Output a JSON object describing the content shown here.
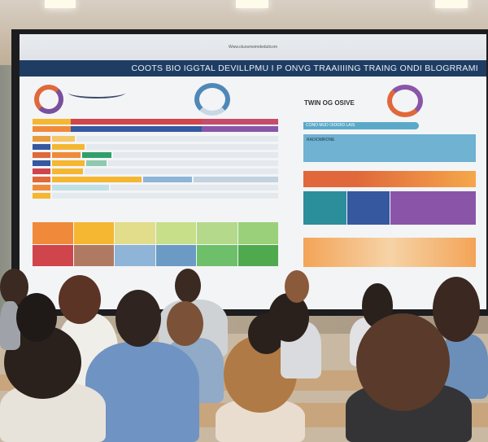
{
  "screen": {
    "url_text": "Www.oluosmeimdedulicom",
    "title": "COOTS BIO IGGTAL DEVILLPMU I P ONVG  TRAAIIIING TRAING ONDI BLOGRRAMI",
    "right_heading": "TWIN OG OSIVE",
    "right_bar_label": "CONO MUD OIDIDID LAIS",
    "right_box_label": "RADIOMRONE"
  },
  "colors": {
    "title_bar": "#1f3d63",
    "orange": "#f08a3a",
    "teal": "#2b8e9a",
    "blue": "#35589f",
    "purple": "#8a55a8",
    "red": "#d0444b",
    "green": "#5bb35a"
  }
}
